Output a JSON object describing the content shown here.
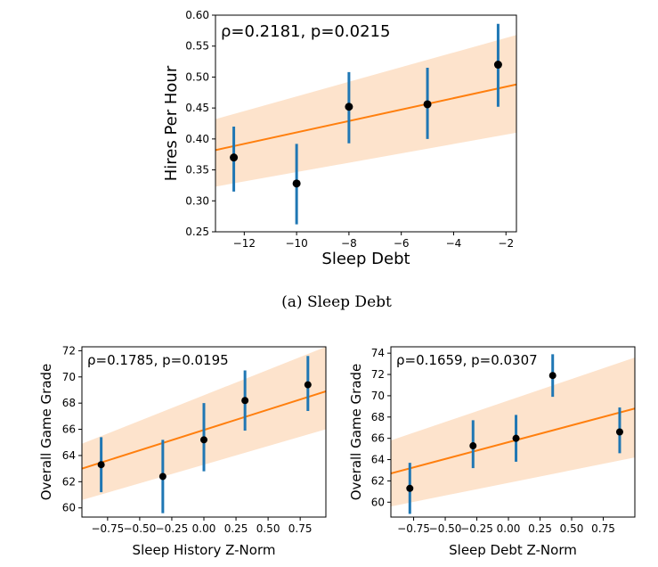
{
  "colors": {
    "point": "#000000",
    "errorbar": "#1f77b4",
    "fit": "#ff7f0e",
    "band": "#fde3cc"
  },
  "chart_data": [
    {
      "type": "scatter",
      "panel": "top",
      "caption": "(a)  Sleep Debt",
      "annotation": "ρ=0.2181, p=0.0215",
      "xlabel": "Sleep Debt",
      "ylabel": "Hires Per Hour",
      "xlim": [
        -13.1,
        -1.6
      ],
      "ylim": [
        0.25,
        0.6
      ],
      "xticks": [
        -12,
        -10,
        -8,
        -6,
        -4,
        -2
      ],
      "xtick_labels": [
        "−12",
        "−10",
        "−8",
        "−6",
        "−4",
        "−2"
      ],
      "yticks": [
        0.25,
        0.3,
        0.35,
        0.4,
        0.45,
        0.5,
        0.55,
        0.6
      ],
      "ytick_labels": [
        "0.25",
        "0.30",
        "0.35",
        "0.40",
        "0.45",
        "0.50",
        "0.55",
        "0.60"
      ],
      "points": [
        {
          "x": -12.4,
          "y": 0.37,
          "lo": 0.315,
          "hi": 0.42
        },
        {
          "x": -10.0,
          "y": 0.328,
          "lo": 0.262,
          "hi": 0.392
        },
        {
          "x": -8.0,
          "y": 0.452,
          "lo": 0.393,
          "hi": 0.508
        },
        {
          "x": -5.0,
          "y": 0.456,
          "lo": 0.4,
          "hi": 0.515
        },
        {
          "x": -2.3,
          "y": 0.52,
          "lo": 0.452,
          "hi": 0.586
        }
      ],
      "fit": {
        "x": [
          -13.1,
          -1.6
        ],
        "y": [
          0.382,
          0.488
        ]
      },
      "band": {
        "x": [
          -13.1,
          -1.6
        ],
        "lower": [
          0.323,
          0.41
        ],
        "upper": [
          0.432,
          0.568
        ]
      }
    },
    {
      "type": "scatter",
      "panel": "bottom-left",
      "annotation": "ρ=0.1785, p=0.0195",
      "xlabel": "Sleep History Z-Norm",
      "ylabel": "Overall Game Grade",
      "xlim": [
        -0.95,
        0.95
      ],
      "ylim": [
        59.3,
        72.3
      ],
      "xticks": [
        -0.75,
        -0.5,
        -0.25,
        0.0,
        0.25,
        0.5,
        0.75
      ],
      "xtick_labels": [
        "−0.75",
        "−0.50",
        "−0.25",
        "0.00",
        "0.25",
        "0.50",
        "0.75"
      ],
      "yticks": [
        60,
        62,
        64,
        66,
        68,
        70,
        72
      ],
      "ytick_labels": [
        "60",
        "62",
        "64",
        "66",
        "68",
        "70",
        "72"
      ],
      "points": [
        {
          "x": -0.8,
          "y": 63.3,
          "lo": 61.2,
          "hi": 65.4
        },
        {
          "x": -0.32,
          "y": 62.4,
          "lo": 59.6,
          "hi": 65.2
        },
        {
          "x": 0.0,
          "y": 65.2,
          "lo": 62.8,
          "hi": 68.0
        },
        {
          "x": 0.32,
          "y": 68.2,
          "lo": 65.9,
          "hi": 70.5
        },
        {
          "x": 0.81,
          "y": 69.4,
          "lo": 67.4,
          "hi": 71.6
        }
      ],
      "fit": {
        "x": [
          -0.95,
          0.95
        ],
        "y": [
          63.0,
          68.9
        ]
      },
      "band": {
        "x": [
          -0.95,
          0.95
        ],
        "lower": [
          60.6,
          66.0
        ],
        "upper": [
          64.9,
          72.3
        ]
      }
    },
    {
      "type": "scatter",
      "panel": "bottom-right",
      "annotation": "ρ=0.1659, p=0.0307",
      "xlabel": "Sleep Debt Z-Norm",
      "ylabel": "Overall Game Grade",
      "xlim": [
        -0.93,
        1.0
      ],
      "ylim": [
        58.6,
        74.6
      ],
      "xticks": [
        -0.75,
        -0.5,
        -0.25,
        0.0,
        0.25,
        0.5,
        0.75
      ],
      "xtick_labels": [
        "−0.75",
        "−0.50",
        "−0.25",
        "0.00",
        "0.25",
        "0.50",
        "0.75"
      ],
      "yticks": [
        60,
        62,
        64,
        66,
        68,
        70,
        72,
        74
      ],
      "ytick_labels": [
        "60",
        "62",
        "64",
        "66",
        "68",
        "70",
        "72",
        "74"
      ],
      "points": [
        {
          "x": -0.78,
          "y": 61.3,
          "lo": 58.9,
          "hi": 63.7
        },
        {
          "x": -0.28,
          "y": 65.3,
          "lo": 63.2,
          "hi": 67.7
        },
        {
          "x": 0.06,
          "y": 66.0,
          "lo": 63.8,
          "hi": 68.2
        },
        {
          "x": 0.35,
          "y": 71.9,
          "lo": 69.9,
          "hi": 73.9
        },
        {
          "x": 0.88,
          "y": 66.6,
          "lo": 64.6,
          "hi": 68.9
        }
      ],
      "fit": {
        "x": [
          -0.93,
          1.0
        ],
        "y": [
          62.7,
          68.8
        ]
      },
      "band": {
        "x": [
          -0.93,
          1.0
        ],
        "lower": [
          59.6,
          64.2
        ],
        "upper": [
          65.8,
          73.6
        ]
      }
    }
  ]
}
